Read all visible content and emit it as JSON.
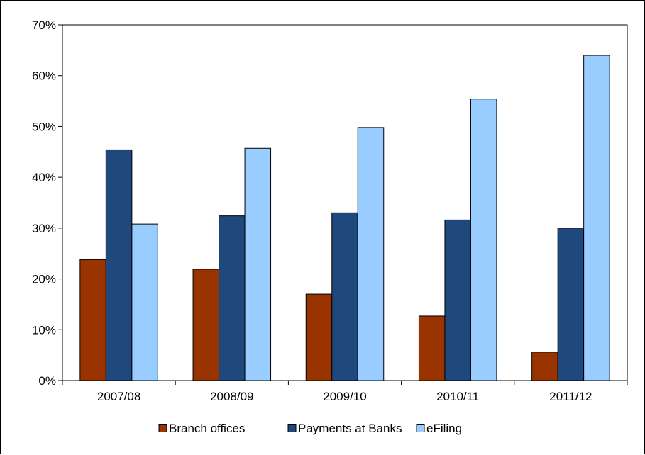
{
  "chart_data": {
    "type": "bar",
    "title": "",
    "xlabel": "",
    "ylabel": "",
    "categories": [
      "2007/08",
      "2008/09",
      "2009/10",
      "2010/11",
      "2011/12"
    ],
    "series": [
      {
        "name": "Branch offices",
        "values": [
          23.8,
          21.9,
          17.0,
          12.7,
          5.6
        ],
        "color": "#993300"
      },
      {
        "name": "Payments at Banks",
        "values": [
          45.4,
          32.4,
          33.0,
          31.6,
          30.0
        ],
        "color": "#1F497D"
      },
      {
        "name": "eFiling",
        "values": [
          30.8,
          45.7,
          49.8,
          55.4,
          64.0
        ],
        "color": "#99CCFF"
      }
    ],
    "ylim": [
      0,
      70
    ],
    "yticks": [
      0,
      10,
      20,
      30,
      40,
      50,
      60,
      70
    ],
    "ytick_labels": [
      "0%",
      "10%",
      "20%",
      "30%",
      "40%",
      "50%",
      "60%",
      "70%"
    ],
    "grid": false,
    "legend_position": "bottom"
  }
}
